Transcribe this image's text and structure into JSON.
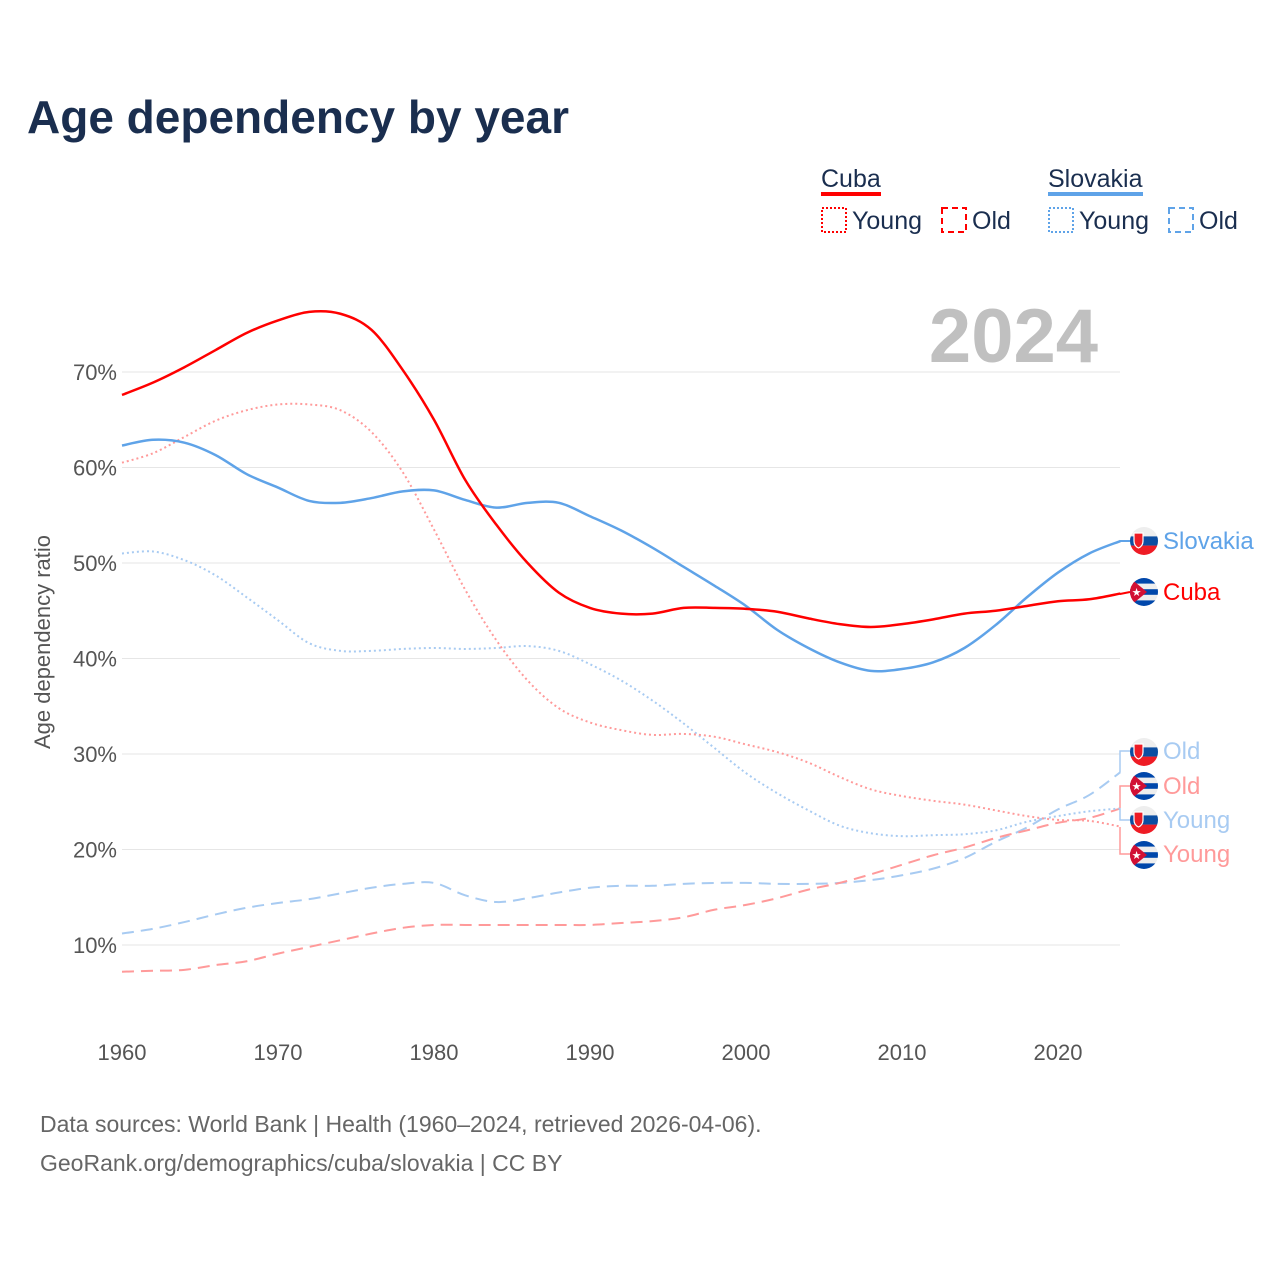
{
  "title": "Age dependency by year",
  "year_display": "2024",
  "legend": {
    "groups": [
      {
        "country": "Cuba",
        "items": [
          "Young",
          "Old"
        ]
      },
      {
        "country": "Slovakia",
        "items": [
          "Young",
          "Old"
        ]
      }
    ]
  },
  "end_labels": {
    "slovakia_total": "Slovakia",
    "cuba_total": "Cuba",
    "slovakia_old": "Old",
    "cuba_old": "Old",
    "slovakia_young": "Young",
    "cuba_young": "Young"
  },
  "footer": {
    "line1": "Data sources: World Bank | Health (1960–2024, retrieved 2026-04-06).",
    "line2": "GeoRank.org/demographics/cuba/slovakia | CC BY"
  },
  "colors": {
    "cuba": "#ff0000",
    "cuba_light": "#ff9a9a",
    "slovakia": "#5fa3e8",
    "slovakia_light": "#a8cbf2"
  },
  "chart_data": {
    "type": "line",
    "title": "Age dependency by year",
    "xlabel": "",
    "ylabel": "Age dependency ratio",
    "xlim": [
      1960,
      2024
    ],
    "ylim": [
      0,
      75
    ],
    "x_ticks": [
      "1960",
      "1970",
      "1980",
      "1990",
      "2000",
      "2010",
      "2020"
    ],
    "y_ticks": [
      "10%",
      "20%",
      "30%",
      "40%",
      "50%",
      "60%",
      "70%"
    ],
    "y_tick_values": [
      10,
      20,
      30,
      40,
      50,
      60,
      70
    ],
    "grid": true,
    "x": [
      1960,
      1962,
      1964,
      1966,
      1968,
      1970,
      1972,
      1974,
      1976,
      1978,
      1980,
      1982,
      1984,
      1986,
      1988,
      1990,
      1992,
      1994,
      1996,
      1998,
      2000,
      2002,
      2004,
      2006,
      2008,
      2010,
      2012,
      2014,
      2016,
      2018,
      2020,
      2022,
      2024
    ],
    "series": [
      {
        "name": "Cuba",
        "key": "cuba_total",
        "style": "solid",
        "color": "#ff0000",
        "values": [
          67.6,
          68.9,
          70.5,
          72.3,
          74.1,
          75.4,
          76.3,
          76.1,
          74.4,
          70.2,
          65.0,
          58.7,
          54.0,
          50.0,
          46.9,
          45.3,
          44.7,
          44.7,
          45.3,
          45.3,
          45.2,
          44.9,
          44.2,
          43.6,
          43.3,
          43.6,
          44.1,
          44.7,
          45.0,
          45.5,
          46.0,
          46.2,
          46.8
        ]
      },
      {
        "name": "Slovakia",
        "key": "slovakia_total",
        "style": "solid",
        "color": "#5fa3e8",
        "values": [
          62.3,
          62.9,
          62.6,
          61.3,
          59.3,
          57.9,
          56.5,
          56.3,
          56.8,
          57.5,
          57.6,
          56.6,
          55.8,
          56.3,
          56.3,
          54.9,
          53.4,
          51.6,
          49.6,
          47.6,
          45.5,
          43.0,
          41.1,
          39.6,
          38.7,
          38.9,
          39.6,
          41.1,
          43.5,
          46.4,
          49.0,
          51.0,
          52.3
        ]
      },
      {
        "name": "Cuba Young",
        "key": "cuba_young",
        "style": "dotted",
        "color": "#ff9a9a",
        "values": [
          60.5,
          61.5,
          63.2,
          64.9,
          66.0,
          66.6,
          66.6,
          66.0,
          63.7,
          59.5,
          53.5,
          47.2,
          41.9,
          37.7,
          34.8,
          33.3,
          32.5,
          32.0,
          32.1,
          31.8,
          31.0,
          30.2,
          29.1,
          27.6,
          26.3,
          25.6,
          25.1,
          24.7,
          24.1,
          23.5,
          23.1,
          23.0,
          22.4
        ]
      },
      {
        "name": "Slovakia Young",
        "key": "slovakia_young",
        "style": "dotted",
        "color": "#a8cbf2",
        "values": [
          51.0,
          51.2,
          50.3,
          48.7,
          46.4,
          44.0,
          41.6,
          40.8,
          40.8,
          41.0,
          41.1,
          41.0,
          41.1,
          41.3,
          40.8,
          39.4,
          37.7,
          35.6,
          33.2,
          30.6,
          28.0,
          25.9,
          24.1,
          22.5,
          21.7,
          21.4,
          21.5,
          21.6,
          22.0,
          22.9,
          23.5,
          24.0,
          24.3
        ]
      },
      {
        "name": "Cuba Old",
        "key": "cuba_old",
        "style": "dashed",
        "color": "#ff9a9a",
        "values": [
          7.2,
          7.3,
          7.4,
          7.9,
          8.3,
          9.1,
          9.8,
          10.5,
          11.2,
          11.8,
          12.1,
          12.1,
          12.1,
          12.1,
          12.1,
          12.1,
          12.3,
          12.5,
          12.9,
          13.7,
          14.2,
          14.9,
          15.8,
          16.5,
          17.4,
          18.4,
          19.4,
          20.2,
          21.2,
          22.0,
          22.8,
          23.3,
          24.3
        ]
      },
      {
        "name": "Slovakia Old",
        "key": "slovakia_old",
        "style": "dashed",
        "color": "#a8cbf2",
        "values": [
          11.2,
          11.7,
          12.4,
          13.2,
          13.9,
          14.4,
          14.8,
          15.4,
          16.0,
          16.4,
          16.5,
          15.2,
          14.5,
          14.9,
          15.5,
          16.0,
          16.2,
          16.2,
          16.4,
          16.5,
          16.5,
          16.4,
          16.4,
          16.5,
          16.8,
          17.3,
          18.0,
          19.1,
          20.8,
          22.3,
          24.2,
          25.7,
          28.1
        ]
      }
    ]
  }
}
